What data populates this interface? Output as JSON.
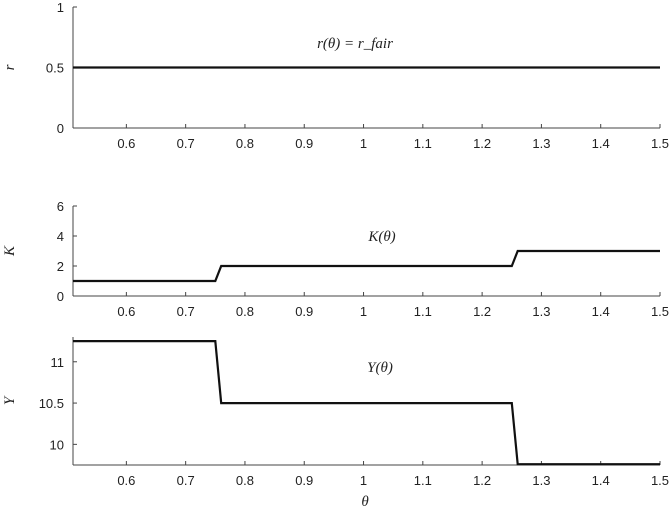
{
  "chart_data": [
    {
      "type": "line",
      "ylabel": "r",
      "annotation": "r(θ) = r_fair",
      "xlim": [
        0.51,
        1.5
      ],
      "ylim": [
        0,
        1
      ],
      "xticks": [
        "0.6",
        "0.7",
        "0.8",
        "0.9",
        "1",
        "1.1",
        "1.2",
        "1.3",
        "1.4",
        "1.5"
      ],
      "yticks": [
        "0",
        "0.5",
        "1"
      ],
      "series": [
        {
          "x": [
            0.51,
            1.5
          ],
          "y": [
            0.5,
            0.5
          ]
        }
      ]
    },
    {
      "type": "line",
      "ylabel": "K",
      "annotation": "K(θ)",
      "xlim": [
        0.51,
        1.5
      ],
      "ylim": [
        0,
        6
      ],
      "xticks": [
        "0.6",
        "0.7",
        "0.8",
        "0.9",
        "1",
        "1.1",
        "1.2",
        "1.3",
        "1.4",
        "1.5"
      ],
      "yticks": [
        "0",
        "2",
        "4",
        "6"
      ],
      "series": [
        {
          "x": [
            0.51,
            0.75,
            0.76,
            1.25,
            1.26,
            1.5
          ],
          "y": [
            1,
            1,
            2,
            2,
            3,
            3
          ]
        }
      ]
    },
    {
      "type": "line",
      "ylabel": "Y",
      "xlabel": "θ",
      "annotation": "Y(θ)",
      "xlim": [
        0.51,
        1.5
      ],
      "ylim": [
        9.75,
        11.3
      ],
      "xticks": [
        "0.6",
        "0.7",
        "0.8",
        "0.9",
        "1",
        "1.1",
        "1.2",
        "1.3",
        "1.4",
        "1.5"
      ],
      "yticks": [
        "10",
        "10.5",
        "11"
      ],
      "series": [
        {
          "x": [
            0.51,
            0.75,
            0.76,
            1.25,
            1.26,
            1.5
          ],
          "y": [
            11.25,
            11.25,
            10.5,
            10.5,
            9.76,
            9.76
          ]
        }
      ]
    }
  ]
}
